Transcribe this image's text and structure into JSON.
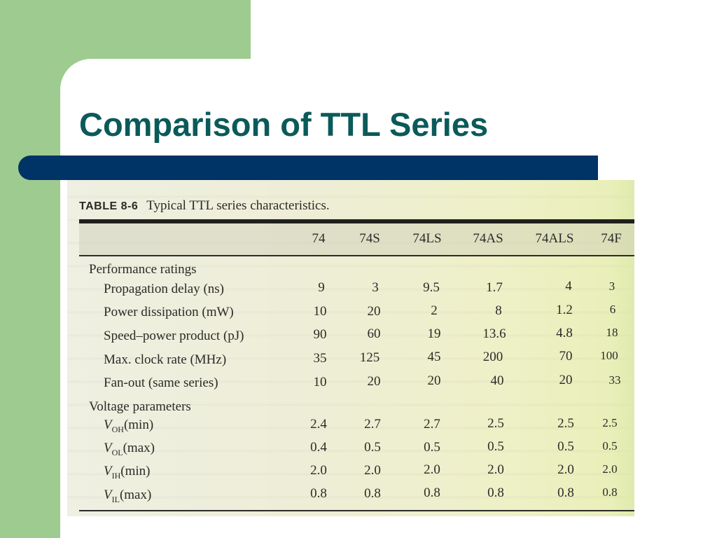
{
  "slide": {
    "title": "Comparison of TTL Series",
    "colors": {
      "green": "#9ecb8f",
      "title": "#0b5a5a",
      "bar": "#003366"
    }
  },
  "table": {
    "number": "TABLE 8-6",
    "caption": "Typical TTL series characteristics.",
    "columns": [
      "74",
      "74S",
      "74LS",
      "74AS",
      "74ALS",
      "74F"
    ],
    "sections": [
      {
        "label": "Performance ratings",
        "rows": [
          {
            "label": "Propagation delay (ns)",
            "values": [
              "9",
              "3",
              "9.5",
              "1.7",
              "4",
              "3"
            ]
          },
          {
            "label": "Power dissipation (mW)",
            "values": [
              "10",
              "20",
              "2",
              "8",
              "1.2",
              "6"
            ]
          },
          {
            "label": "Speed–power product (pJ)",
            "values": [
              "90",
              "60",
              "19",
              "13.6",
              "4.8",
              "18"
            ]
          },
          {
            "label": "Max. clock rate (MHz)",
            "values": [
              "35",
              "125",
              "45",
              "200",
              "70",
              "100"
            ]
          },
          {
            "label": "Fan-out (same series)",
            "values": [
              "10",
              "20",
              "20",
              "40",
              "20",
              "33"
            ]
          }
        ]
      },
      {
        "label": "Voltage parameters",
        "rows": [
          {
            "symbol": "V",
            "sub": "OH",
            "suffix": "(min)",
            "values": [
              "2.4",
              "2.7",
              "2.7",
              "2.5",
              "2.5",
              "2.5"
            ]
          },
          {
            "symbol": "V",
            "sub": "OL",
            "suffix": "(max)",
            "values": [
              "0.4",
              "0.5",
              "0.5",
              "0.5",
              "0.5",
              "0.5"
            ]
          },
          {
            "symbol": "V",
            "sub": "IH",
            "suffix": "(min)",
            "values": [
              "2.0",
              "2.0",
              "2.0",
              "2.0",
              "2.0",
              "2.0"
            ]
          },
          {
            "symbol": "V",
            "sub": "IL",
            "suffix": "(max)",
            "values": [
              "0.8",
              "0.8",
              "0.8",
              "0.8",
              "0.8",
              "0.8"
            ]
          }
        ]
      }
    ]
  }
}
